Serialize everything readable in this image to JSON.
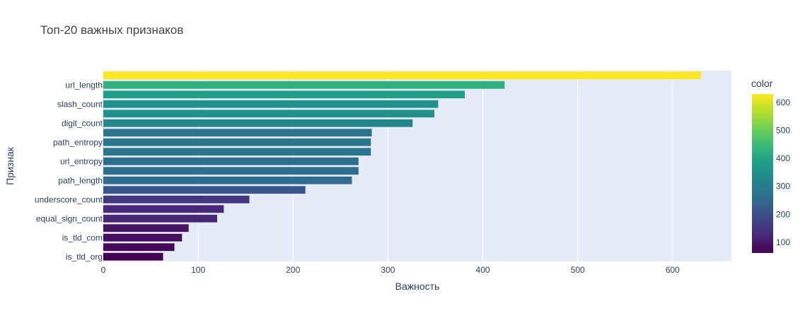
{
  "chart_data": {
    "type": "bar",
    "orientation": "horizontal",
    "title": "Топ-20 важных признаков",
    "xlabel": "Важность",
    "ylabel": "Признак",
    "xlim": [
      0,
      662
    ],
    "x_ticks": [
      0,
      100,
      200,
      300,
      400,
      500,
      600
    ],
    "grid": true,
    "legend": "right",
    "colorbar": {
      "title": "color",
      "range": [
        62,
        630
      ],
      "ticks": [
        100,
        200,
        300,
        400,
        500,
        600
      ],
      "colorscale": "viridis"
    },
    "categories": [
      "",
      "url_length",
      "",
      "slash_count",
      "",
      "digit_count",
      "",
      "path_entropy",
      "",
      "url_entropy",
      "",
      "path_length",
      "",
      "underscore_count",
      "",
      "equal_sign_count",
      "",
      "is_tld_com",
      "",
      "is_tld_org"
    ],
    "values": [
      630,
      423,
      381,
      353,
      349,
      326,
      283,
      282,
      282,
      269,
      269,
      262,
      213,
      154,
      127,
      120,
      90,
      83,
      75,
      63
    ]
  }
}
